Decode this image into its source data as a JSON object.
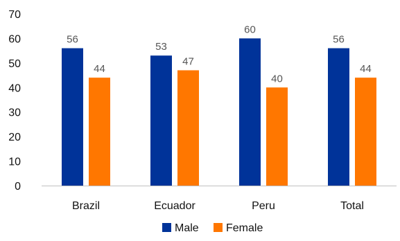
{
  "chart_data": {
    "type": "bar",
    "title": "",
    "xlabel": "",
    "ylabel": "",
    "categories": [
      "Brazil",
      "Ecuador",
      "Peru",
      "Total"
    ],
    "series": [
      {
        "name": "Male",
        "values": [
          56,
          53,
          60,
          56
        ],
        "color": "#003399"
      },
      {
        "name": "Female",
        "values": [
          44,
          47,
          40,
          44
        ],
        "color": "#ff7700"
      }
    ],
    "ylim": [
      0,
      70
    ],
    "yticks": [
      0,
      10,
      20,
      30,
      40,
      50,
      60,
      70
    ],
    "grid": false,
    "data_labels": true,
    "legend_position": "bottom"
  }
}
